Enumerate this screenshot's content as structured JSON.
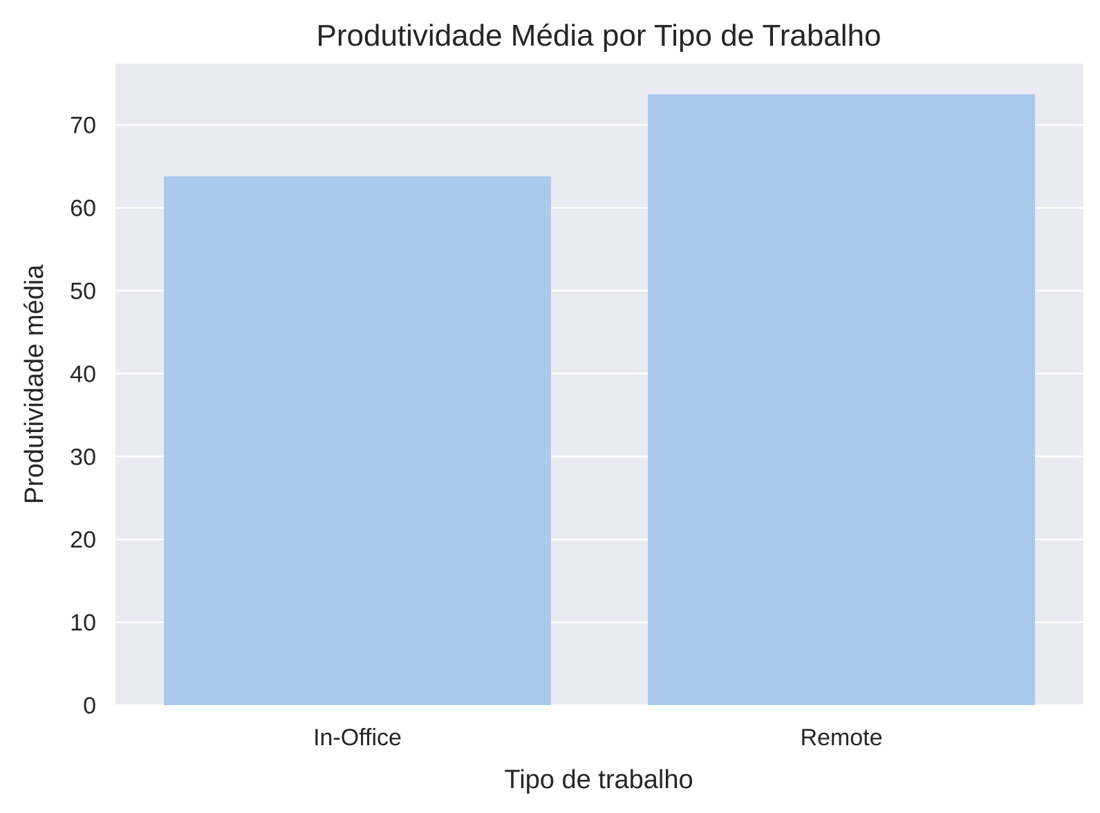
{
  "chart_data": {
    "type": "bar",
    "title": "Produtividade Média por Tipo de Trabalho",
    "xlabel": "Tipo de trabalho",
    "ylabel": "Produtividade média",
    "categories": [
      "In-Office",
      "Remote"
    ],
    "values": [
      63.8,
      73.7
    ],
    "ylim": [
      0,
      77.4
    ],
    "yticks": [
      0,
      10,
      20,
      30,
      40,
      50,
      60,
      70
    ],
    "grid": true,
    "colors": {
      "bar": "#abc9ec",
      "plot_background": "#eaeaf2",
      "grid": "#ffffff",
      "text": "#262626"
    }
  }
}
